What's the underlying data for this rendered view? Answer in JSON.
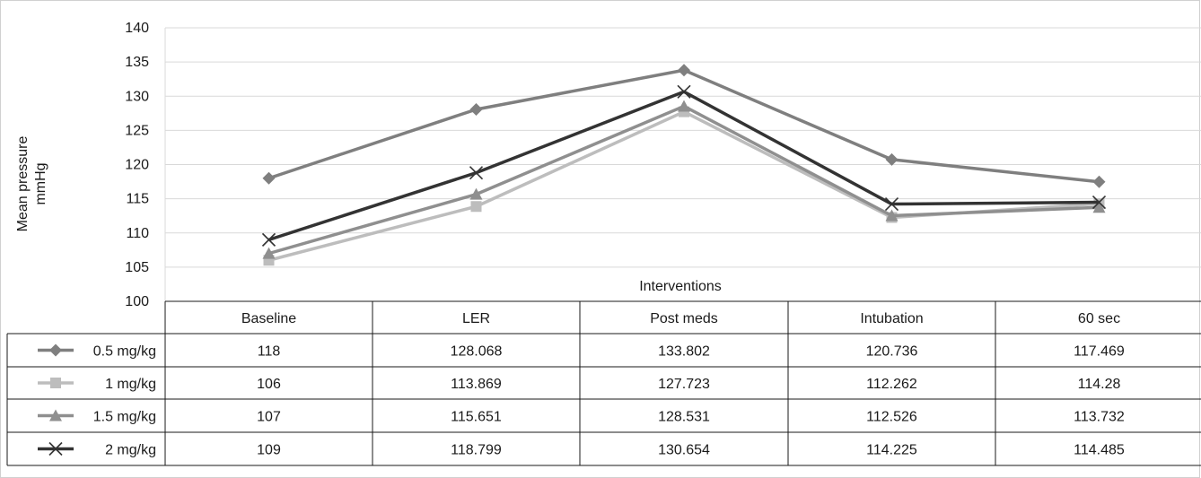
{
  "chart_data": {
    "type": "line",
    "xlabel": "Interventions",
    "ylabel": "Mean pressure mmHg",
    "ylabel_lines": [
      "Mean pressure",
      "mmHg"
    ],
    "ylim": [
      100,
      140
    ],
    "yticks": [
      100,
      105,
      110,
      115,
      120,
      125,
      130,
      135,
      140
    ],
    "grid": true,
    "legend": "data-table",
    "categories": [
      "Baseline",
      "LER",
      "Post meds",
      "Intubation",
      "60 sec"
    ],
    "series": [
      {
        "name": "0.5 mg/kg",
        "marker": "diamond",
        "color": "#7f7f7f",
        "values": [
          118,
          128.068,
          133.802,
          120.736,
          117.469
        ],
        "labels": [
          "118",
          "128.068",
          "133.802",
          "120.736",
          "117.469"
        ]
      },
      {
        "name": "1 mg/kg",
        "marker": "square",
        "color": "#bdbdbd",
        "values": [
          106,
          113.869,
          127.723,
          112.262,
          114.28
        ],
        "labels": [
          "106",
          "113.869",
          "127.723",
          "112.262",
          "114.28"
        ]
      },
      {
        "name": "1.5 mg/kg",
        "marker": "triangle",
        "color": "#8f8f8f",
        "values": [
          107,
          115.651,
          128.531,
          112.526,
          113.732
        ],
        "labels": [
          "107",
          "115.651",
          "128.531",
          "112.526",
          "113.732"
        ]
      },
      {
        "name": "2 mg/kg",
        "marker": "x",
        "color": "#333333",
        "values": [
          109,
          118.799,
          130.654,
          114.225,
          114.485
        ],
        "labels": [
          "109",
          "118.799",
          "130.654",
          "114.225",
          "114.485"
        ]
      }
    ]
  }
}
